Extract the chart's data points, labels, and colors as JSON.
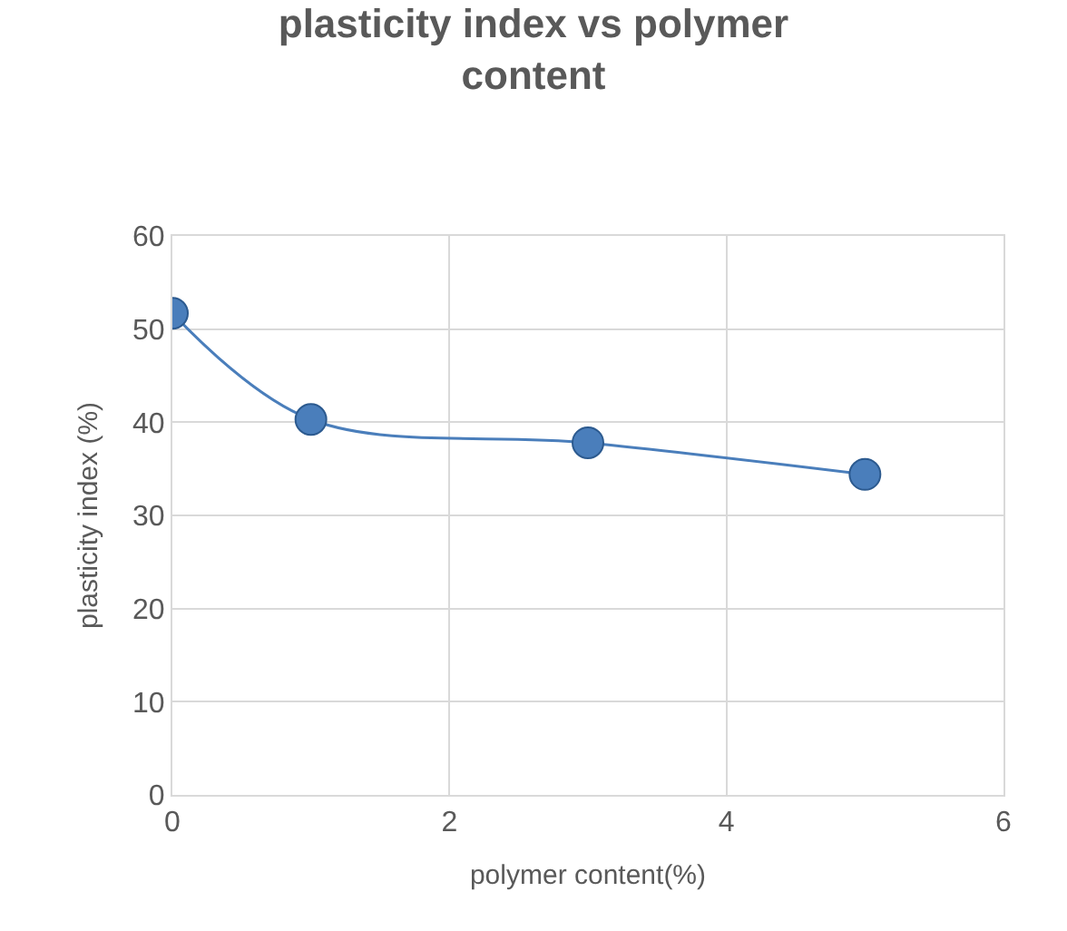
{
  "chart_data": {
    "type": "line",
    "title": "plasticity index vs polymer content",
    "xlabel": "polymer content(%)",
    "ylabel": "plasticity index (%)",
    "x": [
      0,
      1,
      3,
      5
    ],
    "series": [
      {
        "color": "#4a7ebb",
        "values": [
          51.7,
          40.3,
          37.8,
          34.4
        ]
      }
    ],
    "xlim": [
      0,
      6
    ],
    "xticks": [
      0,
      2,
      4,
      6
    ],
    "ylim": [
      0,
      60
    ],
    "yticks": [
      0,
      10,
      20,
      30,
      40,
      50,
      60
    ],
    "grid": true,
    "legend": false,
    "marker": "circle",
    "line_style": "solid"
  }
}
